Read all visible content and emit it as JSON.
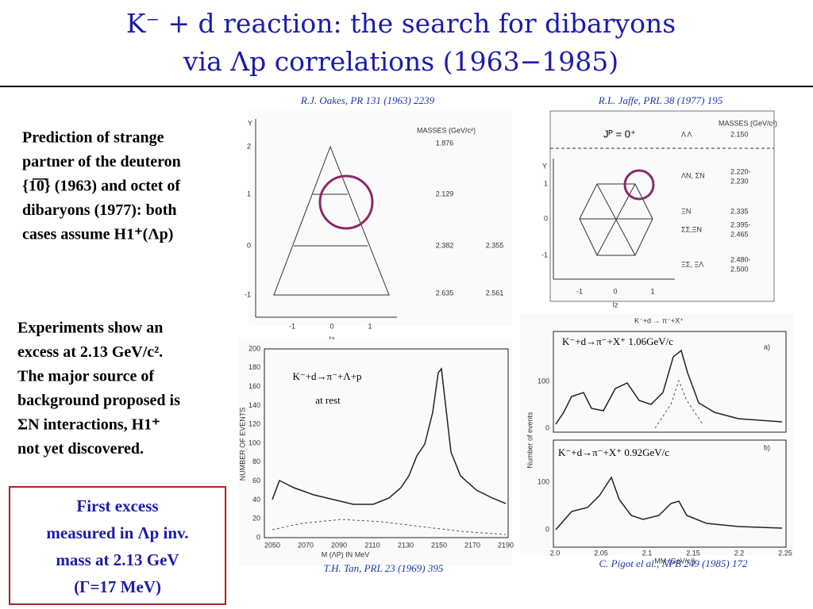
{
  "title": {
    "line1": "K⁻ + d reaction: the search for dibaryons",
    "line2": "via Λp correlations (1963−1985)"
  },
  "left": {
    "prediction": [
      "Prediction of strange",
      "partner of the deuteron",
      "{1̅0̅} (1963) and octet of",
      "dibaryons (1977): both",
      "cases assume H1⁺(Λp)"
    ],
    "experiments": [
      "Experiments show an",
      "excess at 2.13 GeV/c².",
      "The major source of",
      "background proposed is",
      "ΣN interactions, H1⁺",
      "not yet discovered."
    ],
    "box": [
      "First excess",
      "measured in Λp inv.",
      "mass at 2.13 GeV",
      "(Γ=17 MeV)"
    ]
  },
  "oakes": {
    "caption": "R.J. Oakes, PR 131 (1963) 2239",
    "y_axis": "Y",
    "x_axis": "Iz",
    "yticks": [
      "2",
      "1",
      "0",
      "-1"
    ],
    "xticks": [
      "-1",
      "0",
      "1"
    ],
    "masses_header": "MASSES  (GeV/c²)",
    "masses": [
      "1.876",
      "2.129",
      "2.382",
      "2.355",
      "2.635",
      "2.561"
    ]
  },
  "jaffe": {
    "caption": "R.L. Jaffe, PRL 38 (1977) 195",
    "jp": "Jᴾ = 0⁺",
    "y_axis": "Y",
    "x_axis": "Iz",
    "yticks": [
      "1",
      "0",
      "-1"
    ],
    "xticks": [
      "-1",
      "0",
      "1"
    ],
    "masses_header": "MASSES (GeV/c²)",
    "channels": [
      "Λ Λ",
      "ΛN, ΣN",
      "ΞN",
      "ΣΣ,ΞN",
      "ΞΣ, ΞΛ"
    ],
    "masses": [
      "2.150",
      "2.220-",
      "2.230",
      "2.335",
      "2.395-",
      "2.465",
      "2.480-",
      "2.500"
    ]
  },
  "tan": {
    "caption": "T.H. Tan, PRL  23 (1969) 395",
    "reaction": "K⁻+d→π⁻+Λ+p",
    "condition": "at rest",
    "y_axis": "NUMBER OF EVENTS",
    "x_axis": "M (ΛP) IN MeV",
    "yticks": [
      "0",
      "20",
      "40",
      "60",
      "80",
      "100",
      "120",
      "140",
      "160",
      "180",
      "200"
    ],
    "xticks": [
      "2050",
      "2070",
      "2090",
      "2110",
      "2130",
      "2150",
      "2170",
      "2190"
    ]
  },
  "pigot": {
    "caption": "C. Pigot el al., NPB 249 (1985) 172",
    "header": "K⁻+d → π⁻+X⁺",
    "panel_a": "a)",
    "panel_b": "b)",
    "reaction_a": "K⁻+d→π⁻+X⁺  1.06GeV/c",
    "reaction_b": "K⁻+d→π⁻+X⁺  0.92GeV/c",
    "y_axis": "Number of events",
    "x_axis": "MM (GeV/c²)",
    "yticks_a": [
      "100",
      "0"
    ],
    "yticks_b": [
      "100",
      "0"
    ],
    "xticks": [
      "2.0",
      "2.05",
      "2.1",
      "2.15",
      "2.2",
      "2.25"
    ]
  }
}
